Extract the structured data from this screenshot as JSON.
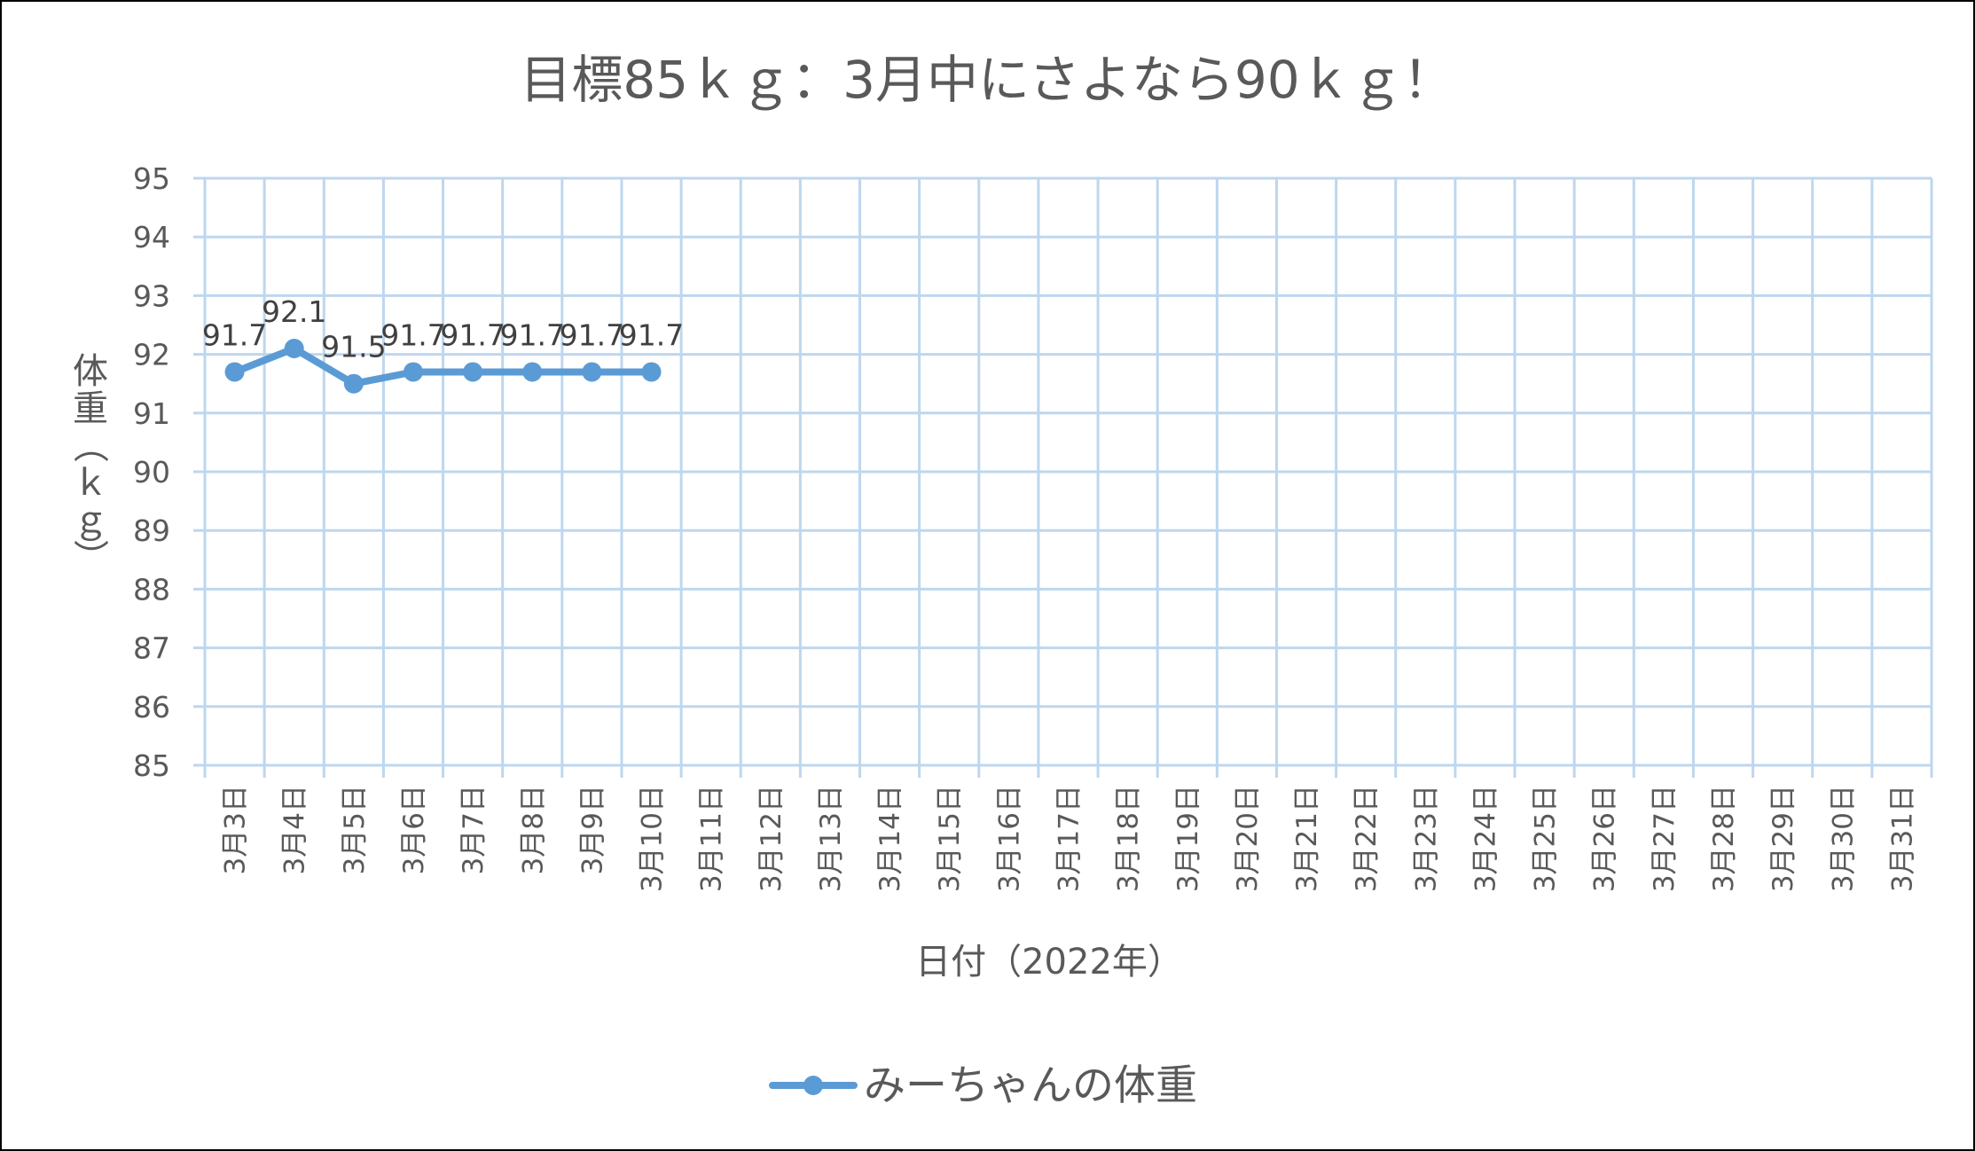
{
  "chart_data": {
    "type": "line",
    "title": "目標85ｋｇ：3月中にさよなら90ｋｇ！",
    "xlabel": "日付（2022年）",
    "ylabel": "体重（ｋｇ）",
    "ylim": [
      85,
      95
    ],
    "yticks": [
      "85",
      "86",
      "87",
      "88",
      "89",
      "90",
      "91",
      "92",
      "93",
      "94",
      "95"
    ],
    "grid": true,
    "legend_position": "bottom",
    "categories": [
      "3月3日",
      "3月4日",
      "3月5日",
      "3月6日",
      "3月7日",
      "3月8日",
      "3月9日",
      "3月10日",
      "3月11日",
      "3月12日",
      "3月13日",
      "3月14日",
      "3月15日",
      "3月16日",
      "3月17日",
      "3月18日",
      "3月19日",
      "3月20日",
      "3月21日",
      "3月22日",
      "3月23日",
      "3月24日",
      "3月25日",
      "3月26日",
      "3月27日",
      "3月28日",
      "3月29日",
      "3月30日",
      "3月31日"
    ],
    "series": [
      {
        "name": "みーちゃんの体重",
        "color": "#5b9bd5",
        "values": [
          91.7,
          92.1,
          91.5,
          91.7,
          91.7,
          91.7,
          91.7,
          91.7,
          null,
          null,
          null,
          null,
          null,
          null,
          null,
          null,
          null,
          null,
          null,
          null,
          null,
          null,
          null,
          null,
          null,
          null,
          null,
          null,
          null
        ],
        "data_labels": [
          "91.7",
          "92.1",
          "91.5",
          "91.7",
          "91.7",
          "91.7",
          "91.7",
          "91.7"
        ]
      }
    ],
    "colors": {
      "grid": "#bdd7ee",
      "text": "#595959",
      "label": "#404040"
    }
  }
}
